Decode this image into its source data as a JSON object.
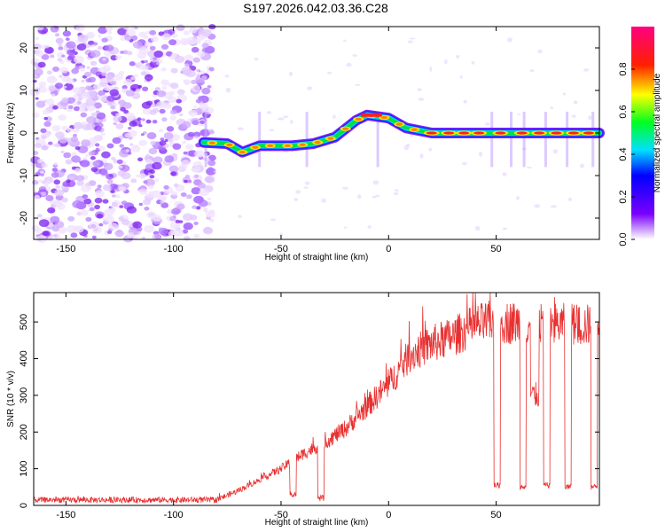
{
  "title": "S197.2026.042.03.36.C28",
  "chart_data": [
    {
      "type": "heatmap",
      "name": "spectrogram",
      "title": "S197.2026.042.03.36.C28",
      "xlabel": "Height of straight line (km)",
      "ylabel": "Frequency (Hz)",
      "xlim": [
        -165,
        98
      ],
      "ylim": [
        -25,
        25
      ],
      "xticks": [
        -150,
        -100,
        -50,
        0,
        50
      ],
      "yticks": [
        -20,
        -10,
        0,
        10,
        20
      ],
      "signal_onset_km": -86,
      "frequency_track": [
        {
          "x": -86,
          "y": -2.2
        },
        {
          "x": -75,
          "y": -2.5
        },
        {
          "x": -68,
          "y": -4.5
        },
        {
          "x": -60,
          "y": -3.0
        },
        {
          "x": -45,
          "y": -3.0
        },
        {
          "x": -35,
          "y": -2.5
        },
        {
          "x": -25,
          "y": -1.0
        },
        {
          "x": -15,
          "y": 3.0
        },
        {
          "x": -10,
          "y": 4.2
        },
        {
          "x": 0,
          "y": 3.5
        },
        {
          "x": 8,
          "y": 1.2
        },
        {
          "x": 20,
          "y": 0.0
        },
        {
          "x": 40,
          "y": 0.0
        },
        {
          "x": 98,
          "y": 0.0
        }
      ],
      "colorbar": {
        "label": "Normalized spectral amplitude",
        "range": [
          0,
          1
        ],
        "ticks": [
          "0.0",
          "0.2",
          "0.4",
          "0.6",
          "0.8"
        ]
      }
    },
    {
      "type": "line",
      "name": "snr",
      "xlabel": "Height of straight line (km)",
      "ylabel": "SNR (10 * v/v)",
      "xlim": [
        -165,
        98
      ],
      "ylim": [
        0,
        580
      ],
      "xticks": [
        -150,
        -100,
        -50,
        0,
        50
      ],
      "yticks": [
        0,
        100,
        200,
        300,
        400,
        500
      ],
      "color": "#e83030",
      "trend": [
        {
          "x": -165,
          "y": 15
        },
        {
          "x": -80,
          "y": 15
        },
        {
          "x": -70,
          "y": 40
        },
        {
          "x": -60,
          "y": 70
        },
        {
          "x": -50,
          "y": 100
        },
        {
          "x": -40,
          "y": 140
        },
        {
          "x": -30,
          "y": 170
        },
        {
          "x": -20,
          "y": 210
        },
        {
          "x": -10,
          "y": 270
        },
        {
          "x": 0,
          "y": 330
        },
        {
          "x": 10,
          "y": 410
        },
        {
          "x": 20,
          "y": 440
        },
        {
          "x": 30,
          "y": 460
        },
        {
          "x": 40,
          "y": 490
        },
        {
          "x": 48,
          "y": 500
        },
        {
          "x": 98,
          "y": 490
        }
      ],
      "dropouts": [
        {
          "x0": -46,
          "x1": -43,
          "y": 30
        },
        {
          "x0": -33,
          "x1": -30,
          "y": 20
        },
        {
          "x0": 49,
          "x1": 52,
          "y": 55
        },
        {
          "x0": 61,
          "x1": 64,
          "y": 50
        },
        {
          "x0": 66,
          "x1": 70,
          "y": 300
        },
        {
          "x0": 72,
          "x1": 75,
          "y": 55
        },
        {
          "x0": 82,
          "x1": 85,
          "y": 50
        },
        {
          "x0": 94,
          "x1": 97,
          "y": 50
        }
      ]
    }
  ]
}
